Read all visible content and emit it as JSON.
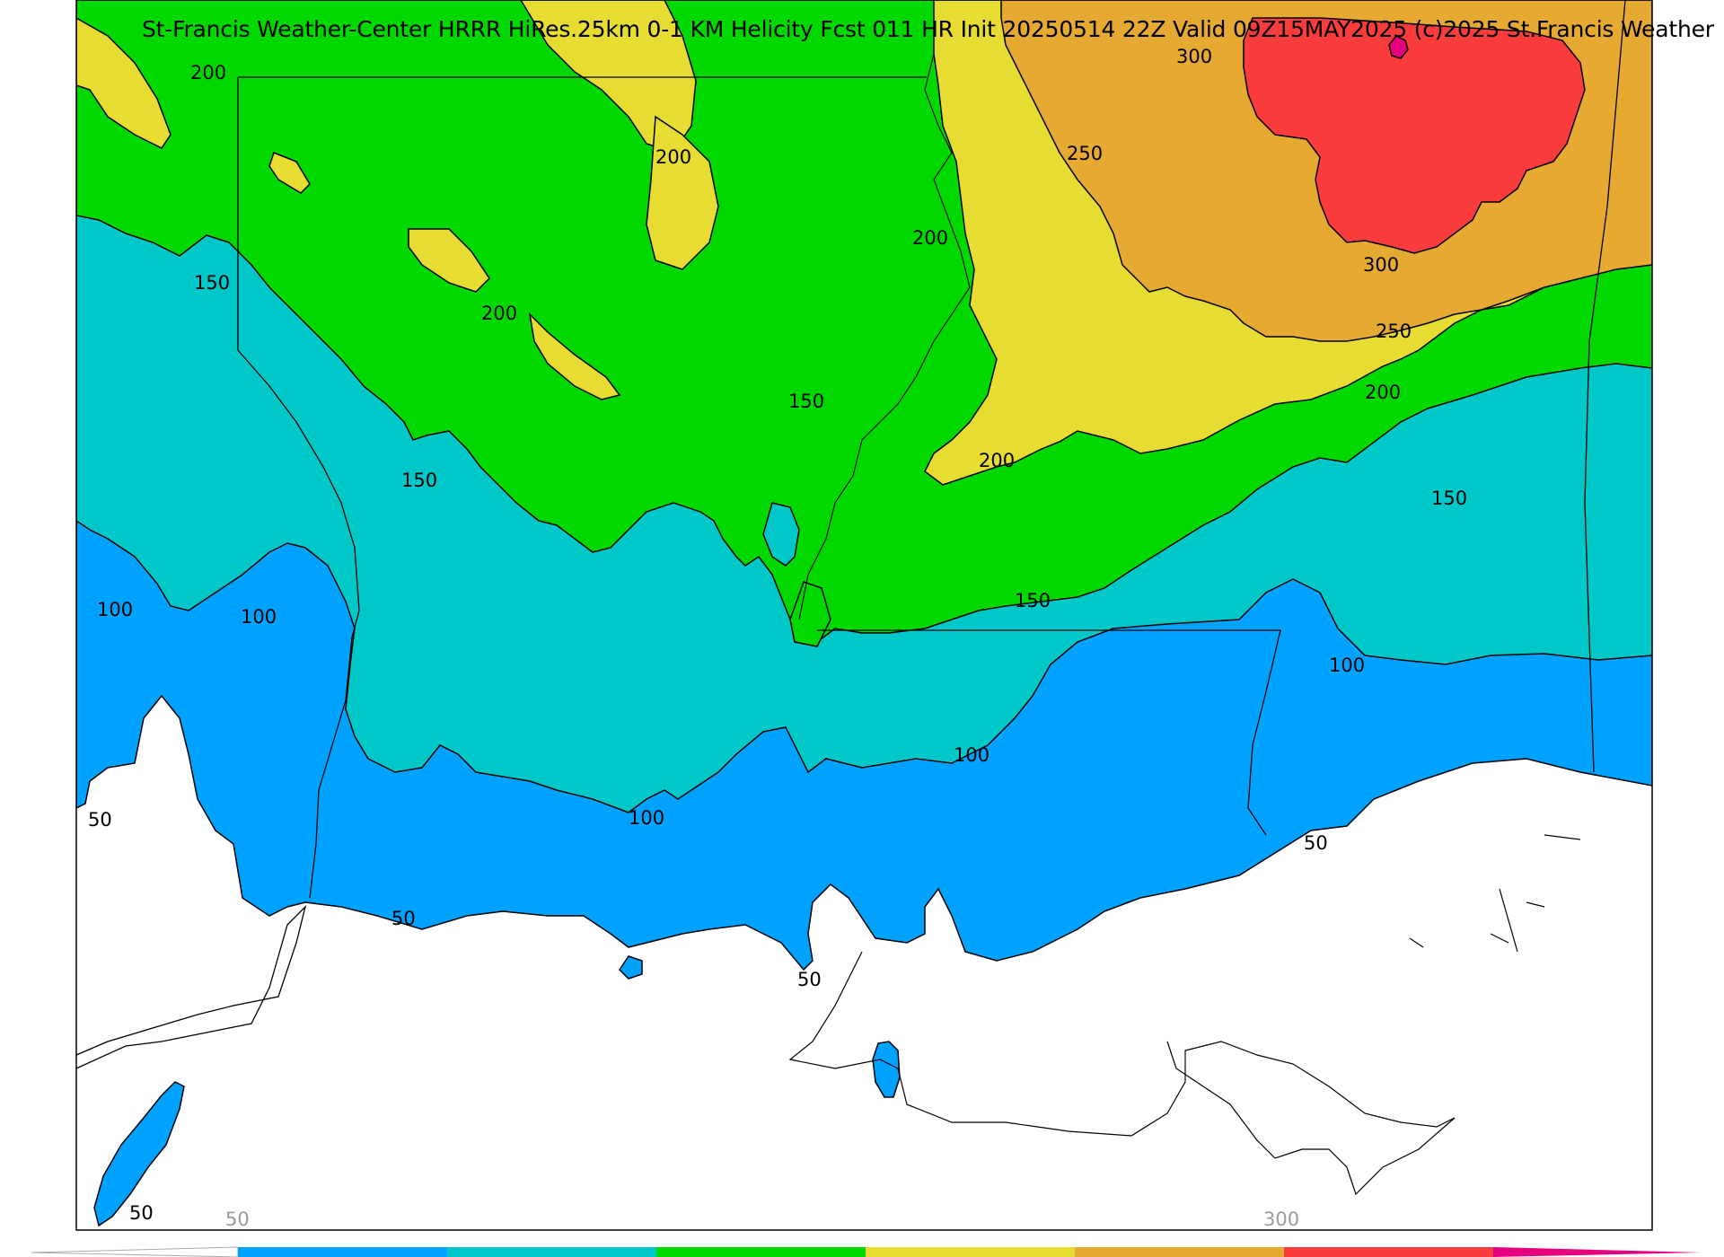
{
  "title": "St-Francis Weather-Center HRRR HiRes.25km 0-1 KM Helicity Fcst 011 HR Init 20250514 22Z  Valid 09Z15MAY2025    (c)2025 St.Francis Weather",
  "colors": {
    "below_50": "#ffffff",
    "c50_100": "#00a2ff",
    "c100_150": "#00c8c8",
    "c150_200": "#00d800",
    "c200_250": "#e6dc32",
    "c250_300": "#e6aa32",
    "c300_350": "#fa3c3c",
    "over_350": "#e6007f"
  },
  "contour_labels": [
    {
      "id": "l200a",
      "text": "200"
    },
    {
      "id": "l200b",
      "text": "200"
    },
    {
      "id": "l200c",
      "text": "200"
    },
    {
      "id": "l200d",
      "text": "200"
    },
    {
      "id": "l200e",
      "text": "200"
    },
    {
      "id": "l200f",
      "text": "200"
    },
    {
      "id": "l250a",
      "text": "250"
    },
    {
      "id": "l250b",
      "text": "250"
    },
    {
      "id": "l300a",
      "text": "300"
    },
    {
      "id": "l300b",
      "text": "300"
    },
    {
      "id": "l150a",
      "text": "150"
    },
    {
      "id": "l150b",
      "text": "150"
    },
    {
      "id": "l150c",
      "text": "150"
    },
    {
      "id": "l150d",
      "text": "150"
    },
    {
      "id": "l150e",
      "text": "150"
    },
    {
      "id": "l100a",
      "text": "100"
    },
    {
      "id": "l100b",
      "text": "100"
    },
    {
      "id": "l100c",
      "text": "100"
    },
    {
      "id": "l100d",
      "text": "100"
    },
    {
      "id": "l100e",
      "text": "100"
    },
    {
      "id": "l50a",
      "text": "50"
    },
    {
      "id": "l50b",
      "text": "50"
    },
    {
      "id": "l50c",
      "text": "50"
    },
    {
      "id": "l50d",
      "text": "50"
    },
    {
      "id": "l50e",
      "text": "50"
    }
  ],
  "colorbar": {
    "tick_labels": [
      "50",
      "300"
    ],
    "segments": [
      "below_50",
      "c50_100",
      "c100_150",
      "c150_200",
      "c200_250",
      "c250_300",
      "c300_350",
      "over_350"
    ]
  }
}
